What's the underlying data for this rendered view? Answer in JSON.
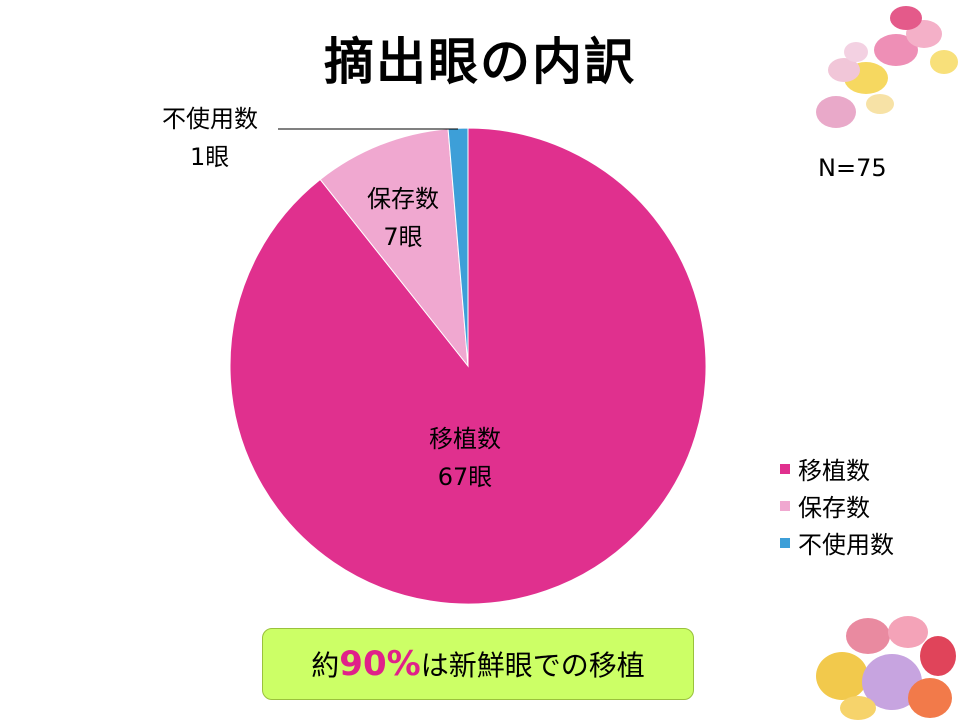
{
  "slide": {
    "title": "摘出眼の内訳",
    "n_label": "N=75",
    "note": {
      "prefix": "約",
      "highlight": "90%",
      "suffix": "は新鮮眼での移植",
      "bg_color": "#ccff66",
      "highlight_color": "#e0218a"
    }
  },
  "chart_data": {
    "type": "pie",
    "total": 75,
    "slices": [
      {
        "name": "移植数",
        "value": 67,
        "label": "67眼",
        "color": "#e0308e"
      },
      {
        "name": "保存数",
        "value": 7,
        "label": "7眼",
        "color": "#f0a8d0"
      },
      {
        "name": "不使用数",
        "value": 1,
        "label": "1眼",
        "color": "#3d9fd8"
      }
    ],
    "legend_position": "right"
  }
}
